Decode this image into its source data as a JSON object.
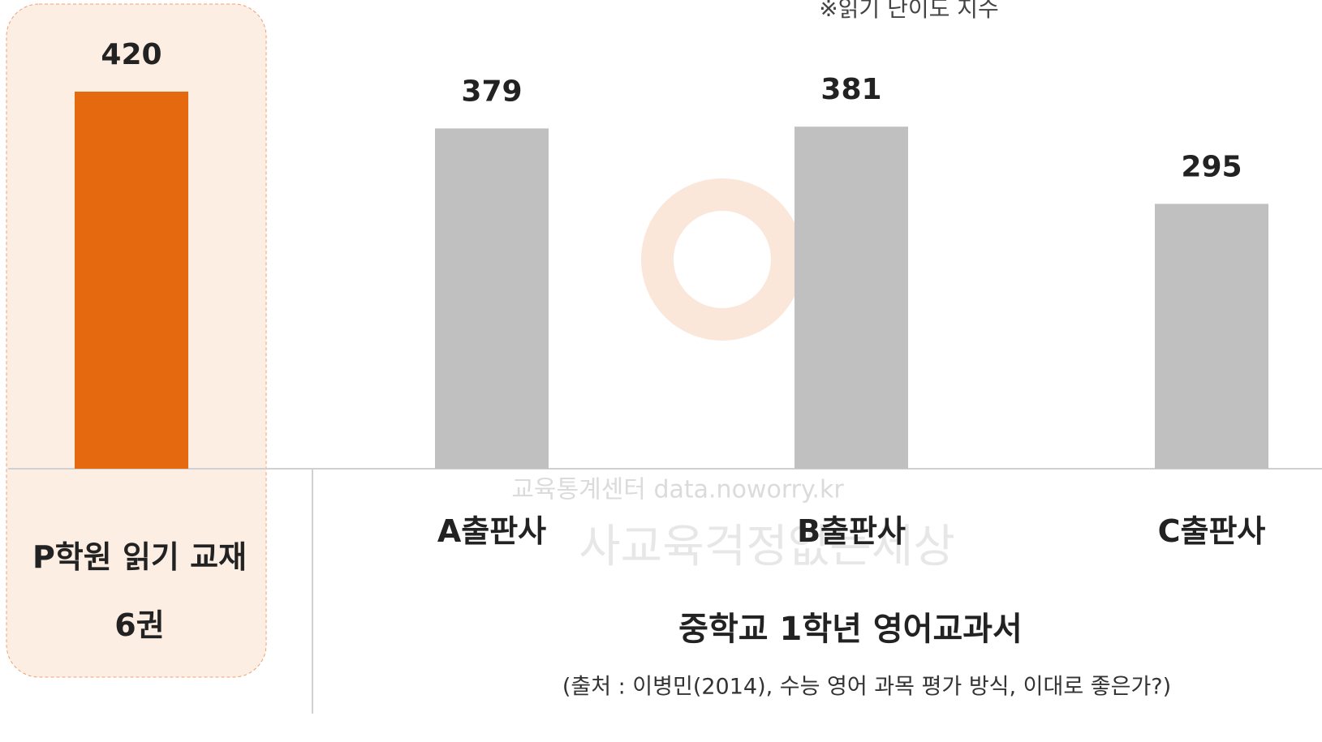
{
  "chart_data": {
    "type": "bar",
    "annotation": "※읽기 난이도 지수",
    "categories": [
      "P학원 읽기 교재\n6권",
      "A출판사",
      "B출판사",
      "C출판사"
    ],
    "values": [
      420,
      379,
      381,
      295
    ],
    "colors": [
      "#e5690f",
      "#c0c0c0",
      "#c0c0c0",
      "#c0c0c0"
    ],
    "group_label": "중학교 1학년 영어교과서",
    "source": "(출처 : 이병민(2014), 수능 영어 과목 평가 방식, 이대로 좋은가?)",
    "watermarks": [
      "교육통계센터 data.noworry.kr",
      "사교육걱정없는세상"
    ]
  }
}
